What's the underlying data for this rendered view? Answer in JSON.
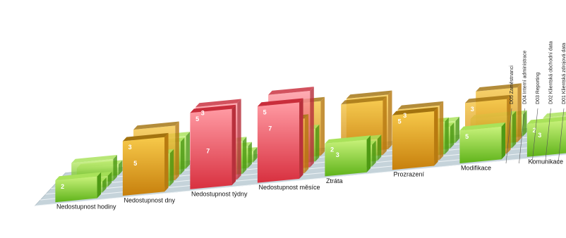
{
  "chart_data": {
    "type": "bar3d",
    "categories": [
      "Nedostupnost hodiny",
      "Nedostupnost dny",
      "Nedostupnost týdny",
      "Nedostupnost měsíce",
      "Ztráta",
      "Prozrazení",
      "Modifikace",
      "Komunikace"
    ],
    "series_labels": [
      "D05 Zaměstnanci",
      "D04 Interní administrace",
      "D03 Reporting",
      "D02 Klientská obchodní data",
      "D01 Klientská zdrojová data"
    ],
    "series": [
      {
        "name": "D01 Klientská zdrojová data",
        "values": [
          2,
          5,
          7,
          7,
          3,
          5,
          3,
          3
        ]
      },
      {
        "name": "D02 Klientská obchodní data",
        "values": [
          1,
          3,
          7,
          5,
          2,
          5,
          5,
          2
        ]
      },
      {
        "name": "D03 Reporting",
        "values": [
          1,
          5,
          3,
          7,
          2,
          3,
          3,
          2
        ]
      },
      {
        "name": "D04 Interní administrace",
        "values": [
          2,
          3,
          2,
          3,
          5,
          2,
          5,
          2
        ]
      },
      {
        "name": "D05 Zaměstnanci",
        "values": [
          1,
          3,
          1,
          5,
          5,
          2,
          2,
          1
        ]
      }
    ],
    "visible_value_labels": [
      {
        "category": 0,
        "text": "2"
      },
      {
        "category": 1,
        "text": "3"
      },
      {
        "category": 1,
        "text": "5"
      },
      {
        "category": 2,
        "text": "5"
      },
      {
        "category": 2,
        "text": "3"
      },
      {
        "category": 2,
        "text": "7"
      },
      {
        "category": 3,
        "text": "5"
      },
      {
        "category": 3,
        "text": "7"
      },
      {
        "category": 4,
        "text": "2"
      },
      {
        "category": 4,
        "text": "3"
      },
      {
        "category": 5,
        "text": "5"
      },
      {
        "category": 5,
        "text": "3"
      },
      {
        "category": 6,
        "text": "5"
      },
      {
        "category": 6,
        "text": "3"
      },
      {
        "category": 7,
        "text": "2"
      },
      {
        "category": 7,
        "text": "3"
      }
    ],
    "colors": {
      "low": "#7fd12b",
      "mid": "#e5a21a",
      "high": "#e83a4a",
      "floor": "#c5d3da",
      "floor_edge": "#9fb0b8"
    }
  }
}
